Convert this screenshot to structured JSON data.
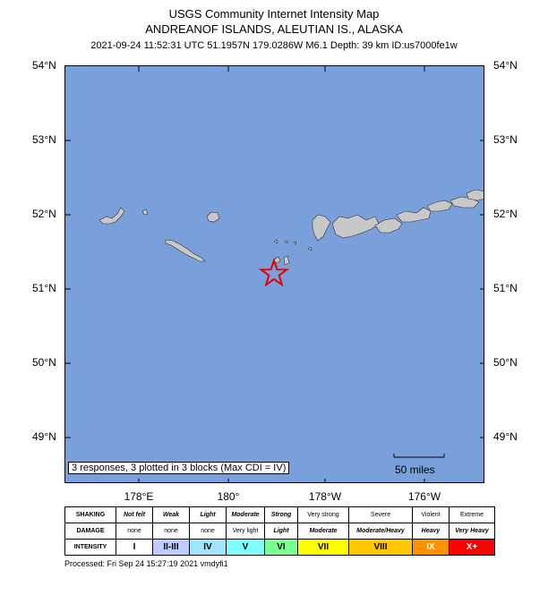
{
  "header": {
    "title": "USGS Community Internet Intensity Map",
    "region": "ANDREANOF ISLANDS, ALEUTIAN IS., ALASKA",
    "event_info": "2021-09-24 11:52:31 UTC 51.1957N 179.0286W M6.1 Depth: 39 km ID:us7000fe1w"
  },
  "map": {
    "latitude_labels": [
      "54°N",
      "53°N",
      "52°N",
      "51°N",
      "50°N",
      "49°N"
    ],
    "longitude_labels": [
      "178°E",
      "180°",
      "178°W",
      "176°W"
    ],
    "responses_note": "3 responses, 3 plotted in 3 blocks (Max CDI = IV)",
    "scale_label": "50 miles",
    "epicenter": {
      "lat": 51.1957,
      "lon": -179.0286,
      "symbol": "star-icon"
    },
    "colors": {
      "ocean": "#7aa0dc",
      "land": "#c8c8c8",
      "epicenter": "#e60000"
    }
  },
  "legend": {
    "rows": [
      {
        "label": "SHAKING",
        "cells": [
          "Not felt",
          "Weak",
          "Light",
          "Moderate",
          "Strong",
          "Very strong",
          "Severe",
          "Violent",
          "Extreme"
        ]
      },
      {
        "label": "DAMAGE",
        "cells": [
          "none",
          "none",
          "none",
          "Very light",
          "Light",
          "Moderate",
          "Moderate/Heavy",
          "Heavy",
          "Very Heavy"
        ]
      },
      {
        "label": "INTENSITY",
        "cells": [
          "I",
          "II-III",
          "IV",
          "V",
          "VI",
          "VII",
          "VIII",
          "IX",
          "X+"
        ]
      }
    ],
    "intensity_colors": [
      "#ffffff",
      "#bfccff",
      "#a0e6ff",
      "#80ffff",
      "#7aff93",
      "#ffff00",
      "#ffc800",
      "#ff9100",
      "#ff0000"
    ]
  },
  "footer": {
    "processed": "Processed: Fri Sep 24 15:27:19 2021 vmdyfi1"
  }
}
